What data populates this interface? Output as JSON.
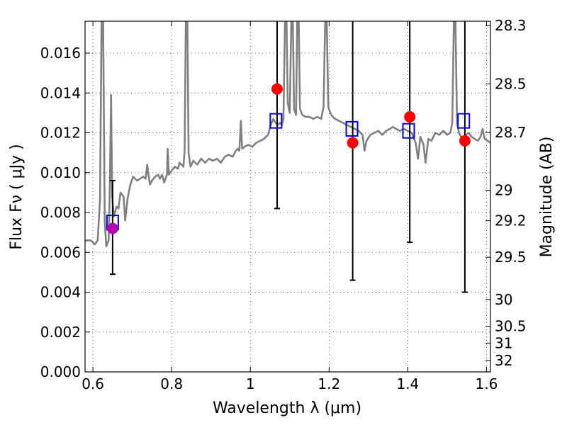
{
  "chart_data": {
    "type": "scatter",
    "xlabel": "Wavelength  λ (μm)",
    "ylabel": "Flux  Fν  ( μJy )",
    "ylabel_right": "Magnitude (AB)",
    "xlim": [
      0.58,
      1.61
    ],
    "ylim": [
      0.0,
      0.0176
    ],
    "grid": true,
    "x_ticks": [
      {
        "value": 0.6,
        "label": "0.6"
      },
      {
        "value": 0.8,
        "label": "0.8"
      },
      {
        "value": 1.0,
        "label": "1"
      },
      {
        "value": 1.2,
        "label": "1.2"
      },
      {
        "value": 1.4,
        "label": "1.4"
      },
      {
        "value": 1.6,
        "label": "1.6"
      }
    ],
    "y_ticks": [
      {
        "value": 0.0,
        "label": "0.000"
      },
      {
        "value": 0.002,
        "label": "0.002"
      },
      {
        "value": 0.004,
        "label": "0.004"
      },
      {
        "value": 0.006,
        "label": "0.006"
      },
      {
        "value": 0.008,
        "label": "0.008"
      },
      {
        "value": 0.01,
        "label": "0.010"
      },
      {
        "value": 0.012,
        "label": "0.012"
      },
      {
        "value": 0.014,
        "label": "0.014"
      },
      {
        "value": 0.016,
        "label": "0.016"
      }
    ],
    "right_ticks": [
      {
        "mag": 28.3,
        "label": "28.3"
      },
      {
        "mag": 28.5,
        "label": "28.5"
      },
      {
        "mag": 28.7,
        "label": "28.7"
      },
      {
        "mag": 29.0,
        "label": "29"
      },
      {
        "mag": 29.2,
        "label": "29.2"
      },
      {
        "mag": 29.5,
        "label": "29.5"
      },
      {
        "mag": 30.0,
        "label": "30"
      },
      {
        "mag": 30.5,
        "label": "30.5"
      },
      {
        "mag": 31.0,
        "label": "31"
      },
      {
        "mag": 32.0,
        "label": "32"
      }
    ],
    "spectrum": {
      "color": "#808080",
      "points": [
        [
          0.58,
          0.0066
        ],
        [
          0.595,
          0.0066
        ],
        [
          0.605,
          0.0064
        ],
        [
          0.612,
          0.0066
        ],
        [
          0.618,
          0.0086
        ],
        [
          0.622,
          0.0176
        ],
        [
          0.626,
          0.0176
        ],
        [
          0.63,
          0.0075
        ],
        [
          0.634,
          0.0063
        ],
        [
          0.64,
          0.0066
        ],
        [
          0.643,
          0.0093
        ],
        [
          0.646,
          0.0139
        ],
        [
          0.649,
          0.0088
        ],
        [
          0.653,
          0.0078
        ],
        [
          0.66,
          0.0083
        ],
        [
          0.665,
          0.0082
        ],
        [
          0.67,
          0.009
        ],
        [
          0.678,
          0.0088
        ],
        [
          0.682,
          0.0076
        ],
        [
          0.688,
          0.0087
        ],
        [
          0.695,
          0.0094
        ],
        [
          0.702,
          0.0098
        ],
        [
          0.712,
          0.0096
        ],
        [
          0.72,
          0.0097
        ],
        [
          0.728,
          0.0098
        ],
        [
          0.734,
          0.0097
        ],
        [
          0.738,
          0.0104
        ],
        [
          0.741,
          0.0099
        ],
        [
          0.745,
          0.0094
        ],
        [
          0.75,
          0.0096
        ],
        [
          0.758,
          0.0098
        ],
        [
          0.766,
          0.0099
        ],
        [
          0.77,
          0.0097
        ],
        [
          0.776,
          0.0099
        ],
        [
          0.781,
          0.0095
        ],
        [
          0.788,
          0.0099
        ],
        [
          0.79,
          0.0112
        ],
        [
          0.793,
          0.0099
        ],
        [
          0.8,
          0.0101
        ],
        [
          0.808,
          0.0103
        ],
        [
          0.816,
          0.0102
        ],
        [
          0.82,
          0.0105
        ],
        [
          0.825,
          0.0104
        ],
        [
          0.83,
          0.0103
        ],
        [
          0.833,
          0.0111
        ],
        [
          0.836,
          0.0176
        ],
        [
          0.84,
          0.0176
        ],
        [
          0.843,
          0.011
        ],
        [
          0.848,
          0.0103
        ],
        [
          0.855,
          0.0106
        ],
        [
          0.865,
          0.0104
        ],
        [
          0.875,
          0.0107
        ],
        [
          0.885,
          0.0105
        ],
        [
          0.895,
          0.0107
        ],
        [
          0.905,
          0.0106
        ],
        [
          0.915,
          0.0107
        ],
        [
          0.925,
          0.0105
        ],
        [
          0.935,
          0.0108
        ],
        [
          0.945,
          0.0109
        ],
        [
          0.955,
          0.0108
        ],
        [
          0.963,
          0.0111
        ],
        [
          0.968,
          0.0112
        ],
        [
          0.972,
          0.0111
        ],
        [
          0.976,
          0.0126
        ],
        [
          0.979,
          0.0112
        ],
        [
          0.985,
          0.0113
        ],
        [
          0.995,
          0.0114
        ],
        [
          1.005,
          0.0113
        ],
        [
          1.015,
          0.0115
        ],
        [
          1.025,
          0.0116
        ],
        [
          1.035,
          0.0117
        ],
        [
          1.045,
          0.0119
        ],
        [
          1.052,
          0.0124
        ],
        [
          1.058,
          0.0127
        ],
        [
          1.064,
          0.0125
        ],
        [
          1.07,
          0.0124
        ],
        [
          1.075,
          0.0125
        ],
        [
          1.08,
          0.0124
        ],
        [
          1.084,
          0.0127
        ],
        [
          1.088,
          0.0176
        ],
        [
          1.092,
          0.0176
        ],
        [
          1.095,
          0.0135
        ],
        [
          1.1,
          0.013
        ],
        [
          1.104,
          0.0176
        ],
        [
          1.108,
          0.0176
        ],
        [
          1.111,
          0.0132
        ],
        [
          1.116,
          0.0129
        ],
        [
          1.119,
          0.0176
        ],
        [
          1.123,
          0.0176
        ],
        [
          1.126,
          0.0132
        ],
        [
          1.132,
          0.0129
        ],
        [
          1.14,
          0.0128
        ],
        [
          1.15,
          0.0128
        ],
        [
          1.16,
          0.0127
        ],
        [
          1.17,
          0.0128
        ],
        [
          1.18,
          0.0127
        ],
        [
          1.186,
          0.0133
        ],
        [
          1.19,
          0.0176
        ],
        [
          1.194,
          0.0176
        ],
        [
          1.198,
          0.0133
        ],
        [
          1.205,
          0.0129
        ],
        [
          1.215,
          0.0127
        ],
        [
          1.225,
          0.0126
        ],
        [
          1.235,
          0.0125
        ],
        [
          1.245,
          0.0124
        ],
        [
          1.255,
          0.0123
        ],
        [
          1.265,
          0.0122
        ],
        [
          1.275,
          0.0121
        ],
        [
          1.285,
          0.0119
        ],
        [
          1.29,
          0.0111
        ],
        [
          1.295,
          0.0116
        ],
        [
          1.305,
          0.0119
        ],
        [
          1.315,
          0.012
        ],
        [
          1.325,
          0.0121
        ],
        [
          1.335,
          0.0119
        ],
        [
          1.345,
          0.0121
        ],
        [
          1.355,
          0.0122
        ],
        [
          1.362,
          0.0123
        ],
        [
          1.37,
          0.0122
        ],
        [
          1.38,
          0.0121
        ],
        [
          1.39,
          0.0122
        ],
        [
          1.4,
          0.0121
        ],
        [
          1.41,
          0.012
        ],
        [
          1.42,
          0.0115
        ],
        [
          1.426,
          0.0107
        ],
        [
          1.432,
          0.0118
        ],
        [
          1.44,
          0.0114
        ],
        [
          1.445,
          0.0105
        ],
        [
          1.452,
          0.0117
        ],
        [
          1.46,
          0.0116
        ],
        [
          1.47,
          0.012
        ],
        [
          1.48,
          0.0119
        ],
        [
          1.49,
          0.0121
        ],
        [
          1.5,
          0.0119
        ],
        [
          1.508,
          0.012
        ],
        [
          1.513,
          0.0125
        ],
        [
          1.517,
          0.0176
        ],
        [
          1.521,
          0.0176
        ],
        [
          1.525,
          0.0125
        ],
        [
          1.53,
          0.012
        ],
        [
          1.535,
          0.0118
        ],
        [
          1.542,
          0.0117
        ],
        [
          1.548,
          0.0119
        ],
        [
          1.555,
          0.012
        ],
        [
          1.562,
          0.0118
        ],
        [
          1.57,
          0.0117
        ],
        [
          1.578,
          0.0116
        ],
        [
          1.585,
          0.0118
        ],
        [
          1.59,
          0.0122
        ],
        [
          1.595,
          0.0117
        ],
        [
          1.603,
          0.0116
        ],
        [
          1.61,
          0.0115
        ]
      ]
    },
    "errorbars": [
      {
        "x": 0.65,
        "low": 0.0049,
        "high": 0.0096,
        "color": "#000000"
      },
      {
        "x": 1.068,
        "low": 0.0082,
        "high": 0.0176,
        "color": "#000000"
      },
      {
        "x": 1.26,
        "low": 0.0046,
        "high": 0.0176,
        "color": "#000000"
      },
      {
        "x": 1.405,
        "low": 0.0065,
        "high": 0.0176,
        "color": "#000000"
      },
      {
        "x": 1.545,
        "low": 0.004,
        "high": 0.0176,
        "color": "#000000"
      }
    ],
    "model_photometry": {
      "marker": "square",
      "color": "#0000cc",
      "points": [
        {
          "x": 0.65,
          "y": 0.0075
        },
        {
          "x": 1.065,
          "y": 0.0126
        },
        {
          "x": 1.258,
          "y": 0.0122
        },
        {
          "x": 1.402,
          "y": 0.0121
        },
        {
          "x": 1.542,
          "y": 0.0126
        }
      ]
    },
    "observed_photometry": [
      {
        "x": 0.65,
        "y": 0.0072,
        "color": "#b000b0"
      },
      {
        "x": 1.068,
        "y": 0.0142,
        "color": "#ff0000"
      },
      {
        "x": 1.26,
        "y": 0.0115,
        "color": "#ff0000"
      },
      {
        "x": 1.405,
        "y": 0.0128,
        "color": "#ff0000"
      },
      {
        "x": 1.545,
        "y": 0.0116,
        "color": "#ff0000"
      }
    ]
  }
}
